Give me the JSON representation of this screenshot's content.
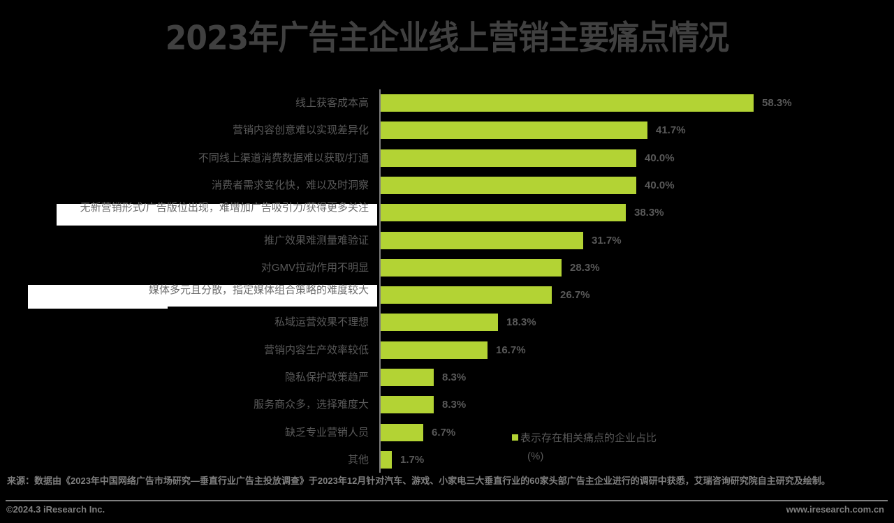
{
  "title": "2023年广告主企业线上营销主要痛点情况",
  "legend": {
    "label": "表示存在相关痛点的企业占比",
    "unit": "(%)",
    "color": "#b3d334"
  },
  "source": "来源：数据由《2023年中国网络广告市场研究—垂直行业广告主投放调查》于2023年12月针对汽车、游戏、小家电三大垂直行业的60家头部广告主企业进行的调研中获悉，艾瑞咨询研究院自主研究及绘制。",
  "copyright": "©2024.3 iResearch Inc.",
  "website": "www.iresearch.com.cn",
  "bars": [
    {
      "label": "线上获客成本高",
      "value": "58.3%"
    },
    {
      "label": "营销内容创意难以实现差异化",
      "value": "41.7%"
    },
    {
      "label": "不同线上渠道消费数据难以获取/打通",
      "value": "40.0%"
    },
    {
      "label": "消费者需求变化快，难以及时洞察",
      "value": "40.0%"
    },
    {
      "label": "无新营销形式/广告版位出现，难增加广告吸引力/获得更多关注",
      "value": "38.3%"
    },
    {
      "label": "推广效果难测量难验证",
      "value": "31.7%"
    },
    {
      "label": "对GMV拉动作用不明显",
      "value": "28.3%"
    },
    {
      "label": "媒体多元且分散，指定媒体组合策略的难度较大",
      "value": "26.7%"
    },
    {
      "label": "私域运营效果不理想",
      "value": "18.3%"
    },
    {
      "label": "营销内容生产效率较低",
      "value": "16.7%"
    },
    {
      "label": "隐私保护政策趋严",
      "value": "8.3%"
    },
    {
      "label": "服务商众多，选择难度大",
      "value": "8.3%"
    },
    {
      "label": "缺乏专业营销人员",
      "value": "6.7%"
    },
    {
      "label": "其他",
      "value": "1.7%"
    }
  ],
  "chart_data": {
    "type": "bar",
    "orientation": "horizontal",
    "title": "2023年广告主企业线上营销主要痛点情况",
    "categories": [
      "线上获客成本高",
      "营销内容创意难以实现差异化",
      "不同线上渠道消费数据难以获取/打通",
      "消费者需求变化快，难以及时洞察",
      "无新营销形式/广告版位出现，难增加广告吸引力/获得更多关注",
      "推广效果难测量难验证",
      "对GMV拉动作用不明显",
      "媒体多元且分散，指定媒体组合策略的难度较大",
      "私域运营效果不理想",
      "营销内容生产效率较低",
      "隐私保护政策趋严",
      "服务商众多，选择难度大",
      "缺乏专业营销人员",
      "其他"
    ],
    "series": [
      {
        "name": "表示存在相关痛点的企业占比",
        "values": [
          58.3,
          41.7,
          40.0,
          40.0,
          38.3,
          31.7,
          28.3,
          26.7,
          18.3,
          16.7,
          8.3,
          8.3,
          6.7,
          1.7
        ],
        "color": "#b3d334"
      }
    ],
    "xlabel": "",
    "ylabel": "",
    "unit": "%",
    "xlim": [
      0,
      60
    ],
    "grid": false,
    "legend_position": "bottom-right",
    "data_labels": true
  }
}
